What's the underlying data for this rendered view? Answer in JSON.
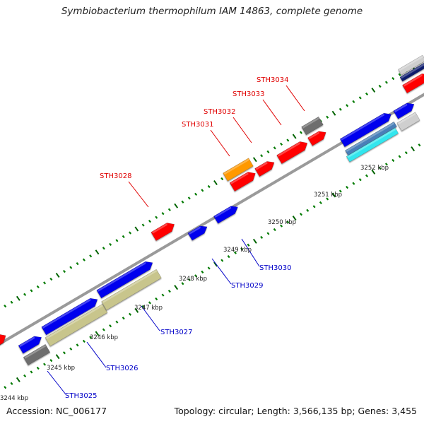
{
  "title": "Symbiobacterium thermophilum IAM 14863, complete genome",
  "accession": "Accession: NC_006177",
  "topology": "Topology: circular; Length: 3,566,135 bp; Genes: 3,455",
  "colors": {
    "forward_label": "#e00000",
    "reverse_label": "#0000c8",
    "tick_major": "#006400",
    "tick_minor": "#007a00",
    "backbone": "#888888",
    "red_cds": "#ff0000",
    "blue_cds": "#0000ee",
    "gray_cds": "#6e6e6e",
    "light_gray_cds": "#cfcfcf",
    "orange_cds": "#ff9900",
    "olive_cds": "#c8c58c",
    "cyan_cds": "#33e6ee",
    "steel_cds": "#4a7fb8",
    "navy_cds": "#0a1a6e"
  },
  "ticks": [
    "3244 kbp",
    "3245 kbp",
    "3246 kbp",
    "3247 kbp",
    "3248 kbp",
    "3249 kbp",
    "3250 kbp",
    "3251 kbp",
    "3252 kbp"
  ],
  "gene_labels_forward": [
    "STH3028",
    "STH3031",
    "STH3032",
    "STH3033",
    "STH3034"
  ],
  "gene_labels_reverse": [
    "STH3025",
    "STH3026",
    "STH3027",
    "STH3029",
    "STH3030"
  ]
}
